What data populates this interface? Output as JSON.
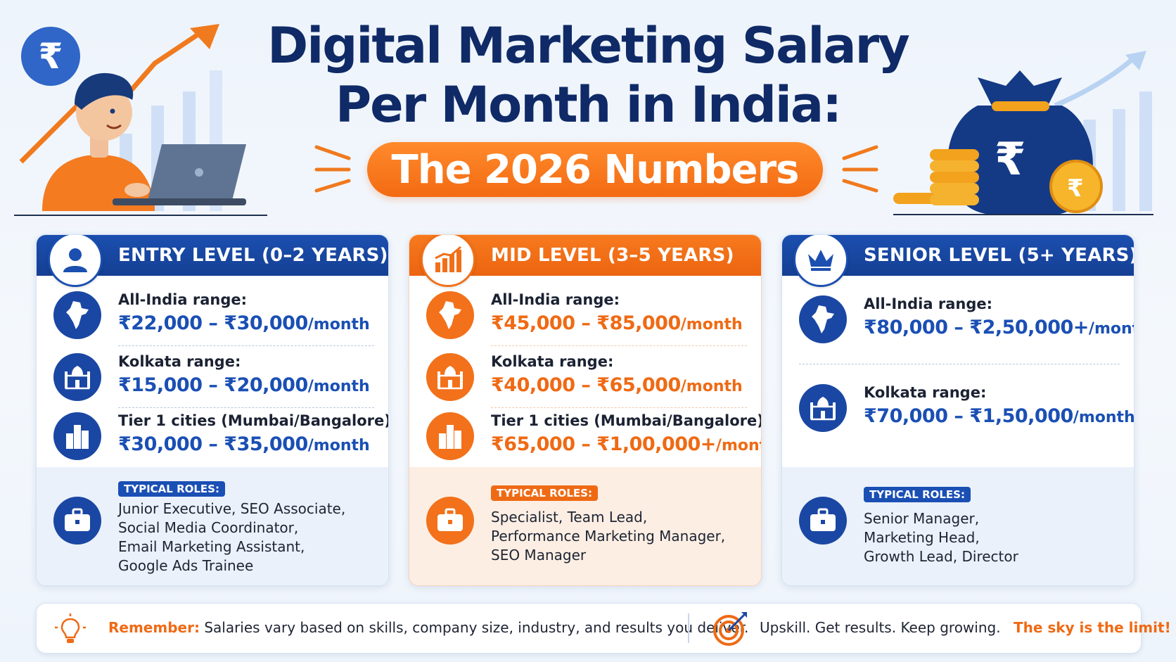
{
  "header": {
    "title_line1": "Digital Marketing Salary",
    "title_line2": "Per Month in India:",
    "subtitle": "The 2026 Numbers"
  },
  "colors": {
    "navy": "#0f2a66",
    "blue": "#1a4fb4",
    "orange": "#ef6a14"
  },
  "cards": [
    {
      "title": "ENTRY LEVEL (0–2 YEARS)",
      "icon": "user-icon",
      "rows": [
        {
          "label": "All-India range:",
          "value": "₹22,000 – ₹30,000",
          "unit": "/month",
          "icon": "india-map-icon"
        },
        {
          "label": "Kolkata range:",
          "value": "₹15,000 – ₹20,000",
          "unit": "/month",
          "icon": "monument-icon"
        },
        {
          "label": "Tier 1 cities (Mumbai/Bangalore):",
          "value": "₹30,000 – ₹35,000",
          "unit": "/month",
          "icon": "buildings-icon"
        }
      ],
      "roles_label": "TYPICAL ROLES:",
      "roles_text": "Junior Executive, SEO Associate,\nSocial Media Coordinator,\nEmail Marketing Assistant,\nGoogle Ads Trainee"
    },
    {
      "title": "MID LEVEL (3–5 YEARS)",
      "icon": "bar-chart-icon",
      "rows": [
        {
          "label": "All-India range:",
          "value": "₹45,000 – ₹85,000",
          "unit": "/month",
          "icon": "india-map-icon"
        },
        {
          "label": "Kolkata range:",
          "value": "₹40,000 – ₹65,000",
          "unit": "/month",
          "icon": "monument-icon"
        },
        {
          "label": "Tier 1 cities (Mumbai/Bangalore):",
          "value": "₹65,000 – ₹1,00,000+",
          "unit": "/month",
          "icon": "buildings-icon"
        }
      ],
      "roles_label": "TYPICAL ROLES:",
      "roles_text": "Specialist, Team Lead,\nPerformance Marketing Manager,\nSEO Manager"
    },
    {
      "title": "SENIOR LEVEL (5+ YEARS)",
      "icon": "crown-icon",
      "rows": [
        {
          "label": "All-India range:",
          "value": "₹80,000 – ₹2,50,000+",
          "unit": "/month",
          "icon": "india-map-icon"
        },
        {
          "label": "Kolkata range:",
          "value": "₹70,000 – ₹1,50,000",
          "unit": "/month",
          "icon": "monument-icon"
        }
      ],
      "roles_label": "TYPICAL ROLES:",
      "roles_text": "Senior Manager,\nMarketing Head,\nGrowth Lead, Director"
    }
  ],
  "footer": {
    "remember_label": "Remember:",
    "remember_text": "Salaries vary based on skills, company size, industry, and results you deliver.",
    "motto": "Upskill. Get results. Keep growing.",
    "motto_strong": "The sky is the limit!"
  },
  "decor": {
    "rupee_badge": "₹",
    "moneybag_symbol": "₹",
    "coin_symbol": "₹"
  }
}
